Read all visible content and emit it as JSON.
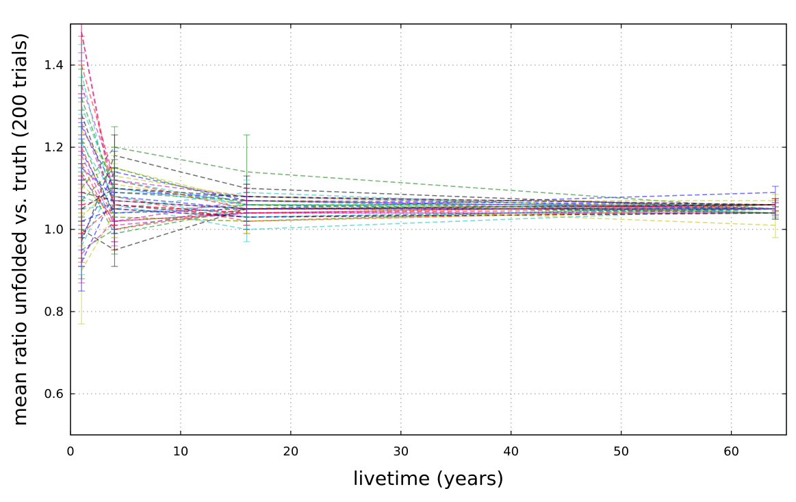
{
  "chart_data": {
    "type": "line",
    "title": "",
    "xlabel": "livetime (years)",
    "ylabel": "mean ratio unfolded vs. truth (200 trials)",
    "xlim": [
      0,
      65
    ],
    "ylim": [
      0.5,
      1.5
    ],
    "xticks": [
      "0",
      "10",
      "20",
      "30",
      "40",
      "50",
      "60"
    ],
    "yticks": [
      "0.6",
      "0.8",
      "1.0",
      "1.2",
      "1.4"
    ],
    "grid": true,
    "line_style": "dashed",
    "error_bars": true,
    "x": [
      1,
      4,
      16,
      64
    ],
    "series": [
      {
        "color": "#0000ff",
        "values": [
          1.25,
          1.1,
          1.07,
          1.06
        ],
        "err": [
          0.07,
          0.05,
          0.03,
          0.015
        ]
      },
      {
        "color": "#008000",
        "values": [
          1.1,
          1.2,
          1.14,
          1.05
        ],
        "err": [
          0.06,
          0.05,
          0.09,
          0.02
        ]
      },
      {
        "color": "#ff0000",
        "values": [
          1.48,
          1.05,
          1.03,
          1.04
        ],
        "err": [
          0.08,
          0.06,
          0.03,
          0.015
        ]
      },
      {
        "color": "#00bfbf",
        "values": [
          1.05,
          1.06,
          1.0,
          1.05
        ],
        "err": [
          0.07,
          0.05,
          0.03,
          0.015
        ]
      },
      {
        "color": "#bf00bf",
        "values": [
          1.35,
          1.12,
          1.08,
          1.06
        ],
        "err": [
          0.08,
          0.05,
          0.03,
          0.015
        ]
      },
      {
        "color": "#bfbf00",
        "values": [
          0.9,
          1.04,
          1.06,
          1.01
        ],
        "err": [
          0.13,
          0.05,
          0.03,
          0.03
        ]
      },
      {
        "color": "#000000",
        "values": [
          0.97,
          1.18,
          1.1,
          1.05
        ],
        "err": [
          0.06,
          0.05,
          0.03,
          0.015
        ]
      },
      {
        "color": "#0000ff",
        "values": [
          1.15,
          1.08,
          1.05,
          1.09
        ],
        "err": [
          0.07,
          0.05,
          0.03,
          0.015
        ]
      },
      {
        "color": "#008000",
        "values": [
          0.95,
          1.0,
          1.06,
          1.06
        ],
        "err": [
          0.07,
          0.05,
          0.03,
          0.015
        ]
      },
      {
        "color": "#ff0000",
        "values": [
          1.2,
          1.02,
          1.04,
          1.05
        ],
        "err": [
          0.07,
          0.05,
          0.03,
          0.015
        ]
      },
      {
        "color": "#00bfbf",
        "values": [
          1.3,
          1.1,
          1.06,
          1.04
        ],
        "err": [
          0.07,
          0.05,
          0.03,
          0.015
        ]
      },
      {
        "color": "#bf00bf",
        "values": [
          1.48,
          1.07,
          1.05,
          1.05
        ],
        "err": [
          0.07,
          0.05,
          0.03,
          0.015
        ]
      },
      {
        "color": "#bfbf00",
        "values": [
          1.12,
          1.15,
          1.07,
          1.07
        ],
        "err": [
          0.07,
          0.05,
          0.03,
          0.015
        ]
      },
      {
        "color": "#000000",
        "values": [
          1.0,
          0.95,
          1.05,
          1.05
        ],
        "err": [
          0.07,
          0.04,
          0.03,
          0.015
        ]
      },
      {
        "color": "#0000ff",
        "values": [
          0.92,
          1.09,
          1.08,
          1.05
        ],
        "err": [
          0.07,
          0.05,
          0.03,
          0.015
        ]
      },
      {
        "color": "#008000",
        "values": [
          1.22,
          1.03,
          1.02,
          1.06
        ],
        "err": [
          0.07,
          0.05,
          0.03,
          0.015
        ]
      },
      {
        "color": "#ff0000",
        "values": [
          1.4,
          1.12,
          1.05,
          1.05
        ],
        "err": [
          0.07,
          0.05,
          0.03,
          0.015
        ]
      },
      {
        "color": "#00bfbf",
        "values": [
          1.08,
          1.05,
          1.09,
          1.04
        ],
        "err": [
          0.07,
          0.05,
          0.03,
          0.015
        ]
      },
      {
        "color": "#bf00bf",
        "values": [
          1.18,
          1.01,
          1.04,
          1.06
        ],
        "err": [
          0.07,
          0.05,
          0.03,
          0.015
        ]
      },
      {
        "color": "#bfbf00",
        "values": [
          1.03,
          1.11,
          1.06,
          1.05
        ],
        "err": [
          0.07,
          0.05,
          0.03,
          0.015
        ]
      },
      {
        "color": "#000000",
        "values": [
          1.28,
          1.06,
          1.03,
          1.04
        ],
        "err": [
          0.07,
          0.05,
          0.03,
          0.015
        ]
      },
      {
        "color": "#0000ff",
        "values": [
          0.98,
          1.14,
          1.07,
          1.05
        ],
        "err": [
          0.07,
          0.05,
          0.03,
          0.015
        ]
      },
      {
        "color": "#008000",
        "values": [
          1.14,
          0.99,
          1.05,
          1.06
        ],
        "err": [
          0.07,
          0.05,
          0.03,
          0.015
        ]
      },
      {
        "color": "#ff0000",
        "values": [
          1.06,
          1.08,
          1.02,
          1.05
        ],
        "err": [
          0.07,
          0.05,
          0.03,
          0.015
        ]
      },
      {
        "color": "#00bfbf",
        "values": [
          1.38,
          1.04,
          1.06,
          1.06
        ],
        "err": [
          0.07,
          0.05,
          0.03,
          0.015
        ]
      },
      {
        "color": "#bf00bf",
        "values": [
          0.94,
          1.02,
          1.04,
          1.04
        ],
        "err": [
          0.07,
          0.05,
          0.03,
          0.015
        ]
      },
      {
        "color": "#bfbf00",
        "values": [
          1.24,
          1.13,
          1.08,
          1.05
        ],
        "err": [
          0.07,
          0.05,
          0.03,
          0.015
        ]
      },
      {
        "color": "#000000",
        "values": [
          1.09,
          1.07,
          1.05,
          1.06
        ],
        "err": [
          0.07,
          0.05,
          0.03,
          0.015
        ]
      },
      {
        "color": "#0000ff",
        "values": [
          1.02,
          1.05,
          1.03,
          1.05
        ],
        "err": [
          0.07,
          0.05,
          0.03,
          0.015
        ]
      },
      {
        "color": "#008000",
        "values": [
          1.32,
          1.09,
          1.07,
          1.04
        ],
        "err": [
          0.07,
          0.05,
          0.03,
          0.015
        ]
      },
      {
        "color": "#ff0000",
        "values": [
          1.16,
          1.0,
          1.05,
          1.06
        ],
        "err": [
          0.07,
          0.05,
          0.03,
          0.015
        ]
      },
      {
        "color": "#00bfbf",
        "values": [
          0.96,
          1.12,
          1.06,
          1.05
        ],
        "err": [
          0.07,
          0.05,
          0.03,
          0.015
        ]
      },
      {
        "color": "#bf00bf",
        "values": [
          1.26,
          1.06,
          1.04,
          1.04
        ],
        "err": [
          0.07,
          0.05,
          0.03,
          0.015
        ]
      },
      {
        "color": "#bfbf00",
        "values": [
          1.11,
          1.03,
          1.02,
          1.05
        ],
        "err": [
          0.07,
          0.05,
          0.03,
          0.015
        ]
      },
      {
        "color": "#000000",
        "values": [
          1.05,
          1.1,
          1.08,
          1.06
        ],
        "err": [
          0.07,
          0.05,
          0.03,
          0.015
        ]
      },
      {
        "color": "#0000ff",
        "values": [
          1.19,
          1.04,
          1.05,
          1.05
        ],
        "err": [
          0.07,
          0.05,
          0.03,
          0.015
        ]
      },
      {
        "color": "#008000",
        "values": [
          1.07,
          1.15,
          1.06,
          1.04
        ],
        "err": [
          0.07,
          0.05,
          0.03,
          0.015
        ]
      },
      {
        "color": "#ff0000",
        "values": [
          0.99,
          1.06,
          1.04,
          1.06
        ],
        "err": [
          0.07,
          0.05,
          0.03,
          0.015
        ]
      },
      {
        "color": "#00bfbf",
        "values": [
          1.21,
          1.08,
          1.03,
          1.05
        ],
        "err": [
          0.07,
          0.05,
          0.03,
          0.015
        ]
      },
      {
        "color": "#bf00bf",
        "values": [
          1.13,
          1.02,
          1.07,
          1.05
        ],
        "err": [
          0.07,
          0.05,
          0.03,
          0.015
        ]
      }
    ]
  }
}
